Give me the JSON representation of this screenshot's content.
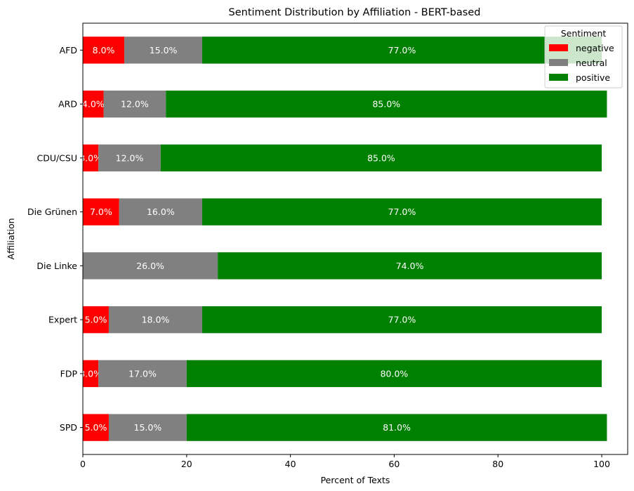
{
  "chart_data": {
    "type": "bar",
    "orientation": "horizontal",
    "stacked": true,
    "title": "Sentiment Distribution by Affiliation - BERT-based",
    "xlabel": "Percent of Texts",
    "ylabel": "Affiliation",
    "xlim": [
      0,
      105
    ],
    "xticks": [
      0,
      20,
      40,
      60,
      80,
      100
    ],
    "grid": false,
    "categories": [
      "AFD",
      "ARD",
      "CDU/CSU",
      "Die Grünen",
      "Die Linke",
      "Expert",
      "FDP",
      "SPD"
    ],
    "series": [
      {
        "name": "negative",
        "color": "#ff0000",
        "values": [
          8.0,
          4.0,
          3.0,
          7.0,
          0,
          5.0,
          3.0,
          5.0
        ]
      },
      {
        "name": "neutral",
        "color": "#808080",
        "values": [
          15.0,
          12.0,
          12.0,
          16.0,
          26.0,
          18.0,
          17.0,
          15.0
        ]
      },
      {
        "name": "positive",
        "color": "#008000",
        "values": [
          77.0,
          85.0,
          85.0,
          77.0,
          74.0,
          77.0,
          80.0,
          81.0
        ]
      }
    ],
    "legend": {
      "title": "Sentiment",
      "placement": "top-right"
    }
  }
}
